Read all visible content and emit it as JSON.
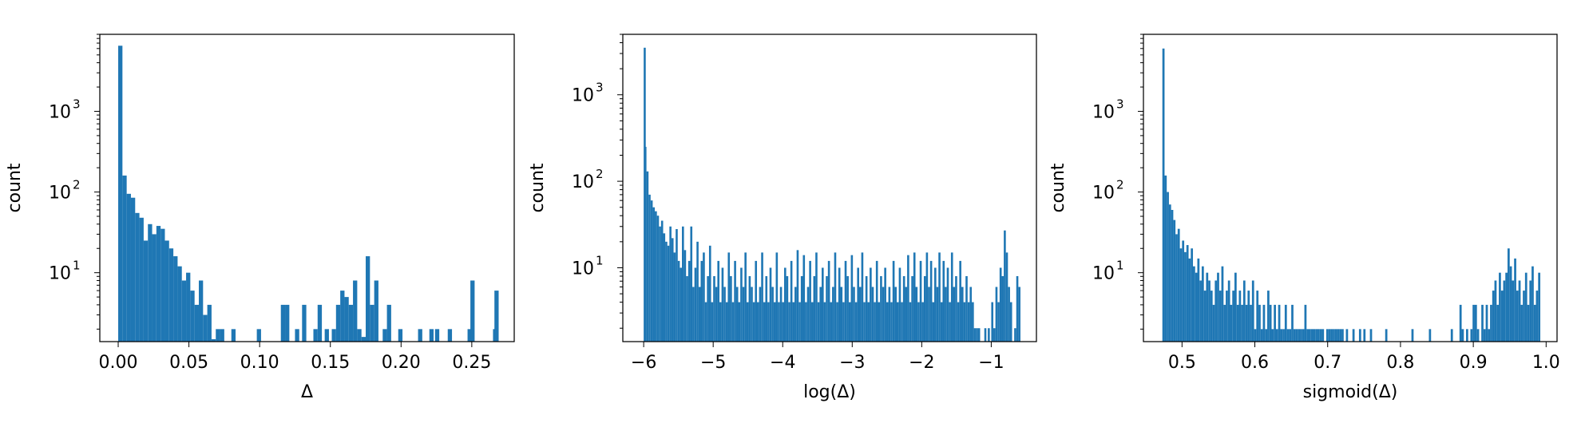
{
  "chart_data": [
    {
      "type": "bar",
      "xlabel": "Δ",
      "ylabel": "count",
      "yscale": "log",
      "xlim": [
        -0.013,
        0.28
      ],
      "ylim": [
        1.4,
        9000
      ],
      "xticks": [
        "0.00",
        "0.05",
        "0.10",
        "0.15",
        "0.20",
        "0.25"
      ],
      "yticks": [
        {
          "base": "10",
          "exp": "1"
        },
        {
          "base": "10",
          "exp": "2"
        },
        {
          "base": "10",
          "exp": "3"
        }
      ],
      "bar_color": "#1f77b4",
      "bins": [
        [
          0.0,
          6500
        ],
        [
          0.003,
          160
        ],
        [
          0.006,
          95
        ],
        [
          0.009,
          85
        ],
        [
          0.012,
          55
        ],
        [
          0.015,
          48
        ],
        [
          0.018,
          25
        ],
        [
          0.021,
          40
        ],
        [
          0.024,
          30
        ],
        [
          0.027,
          38
        ],
        [
          0.03,
          35
        ],
        [
          0.033,
          25
        ],
        [
          0.036,
          20
        ],
        [
          0.039,
          16
        ],
        [
          0.042,
          12
        ],
        [
          0.045,
          8
        ],
        [
          0.048,
          10
        ],
        [
          0.051,
          6
        ],
        [
          0.054,
          4
        ],
        [
          0.057,
          8
        ],
        [
          0.06,
          3
        ],
        [
          0.063,
          4
        ],
        [
          0.066,
          1.5
        ],
        [
          0.069,
          2
        ],
        [
          0.072,
          2
        ],
        [
          0.08,
          2
        ],
        [
          0.098,
          2
        ],
        [
          0.115,
          4
        ],
        [
          0.118,
          4
        ],
        [
          0.125,
          2
        ],
        [
          0.13,
          4
        ],
        [
          0.138,
          2
        ],
        [
          0.141,
          4
        ],
        [
          0.146,
          2
        ],
        [
          0.151,
          2
        ],
        [
          0.154,
          4
        ],
        [
          0.157,
          6
        ],
        [
          0.16,
          5
        ],
        [
          0.163,
          4
        ],
        [
          0.166,
          8
        ],
        [
          0.169,
          2
        ],
        [
          0.172,
          1.6
        ],
        [
          0.175,
          16
        ],
        [
          0.178,
          4
        ],
        [
          0.181,
          8
        ],
        [
          0.187,
          2
        ],
        [
          0.19,
          4
        ],
        [
          0.198,
          2
        ],
        [
          0.212,
          2
        ],
        [
          0.22,
          2
        ],
        [
          0.224,
          2
        ],
        [
          0.233,
          2
        ],
        [
          0.247,
          2
        ],
        [
          0.249,
          8
        ],
        [
          0.265,
          2
        ],
        [
          0.266,
          6
        ]
      ]
    },
    {
      "type": "bar",
      "xlabel": "log(Δ)",
      "ylabel": "count",
      "yscale": "log",
      "xlim": [
        -6.3,
        -0.35
      ],
      "ylim": [
        1.4,
        5000
      ],
      "xticks": [
        "−6",
        "−5",
        "−4",
        "−3",
        "−2",
        "−1"
      ],
      "yticks": [
        {
          "base": "10",
          "exp": "1"
        },
        {
          "base": "10",
          "exp": "2"
        },
        {
          "base": "10",
          "exp": "3"
        }
      ],
      "bar_color": "#1f77b4",
      "bins": [
        [
          -6.0,
          3500
        ],
        [
          -5.99,
          250
        ],
        [
          -5.96,
          130
        ],
        [
          -5.93,
          70
        ],
        [
          -5.9,
          60
        ],
        [
          -5.87,
          50
        ],
        [
          -5.84,
          45
        ],
        [
          -5.81,
          40
        ],
        [
          -5.78,
          30
        ],
        [
          -5.75,
          35
        ],
        [
          -5.72,
          25
        ],
        [
          -5.69,
          20
        ],
        [
          -5.66,
          18
        ],
        [
          -5.63,
          30
        ],
        [
          -5.6,
          22
        ],
        [
          -5.57,
          15
        ],
        [
          -5.54,
          28
        ],
        [
          -5.51,
          12
        ],
        [
          -5.48,
          10
        ],
        [
          -5.45,
          30
        ],
        [
          -5.42,
          16
        ],
        [
          -5.39,
          8
        ],
        [
          -5.36,
          12
        ],
        [
          -5.33,
          30
        ],
        [
          -5.3,
          6
        ],
        [
          -5.27,
          10
        ],
        [
          -5.24,
          20
        ],
        [
          -5.21,
          6
        ],
        [
          -5.18,
          12
        ],
        [
          -5.15,
          15
        ],
        [
          -5.12,
          4
        ],
        [
          -5.09,
          8
        ],
        [
          -5.06,
          18
        ],
        [
          -5.03,
          4
        ],
        [
          -5.0,
          8
        ],
        [
          -4.97,
          6
        ],
        [
          -4.94,
          12
        ],
        [
          -4.91,
          4
        ],
        [
          -4.88,
          10
        ],
        [
          -4.85,
          6
        ],
        [
          -4.82,
          4
        ],
        [
          -4.79,
          15
        ],
        [
          -4.76,
          8
        ],
        [
          -4.73,
          4
        ],
        [
          -4.7,
          12
        ],
        [
          -4.67,
          6
        ],
        [
          -4.64,
          4
        ],
        [
          -4.61,
          10
        ],
        [
          -4.58,
          6
        ],
        [
          -4.55,
          15
        ],
        [
          -4.52,
          4
        ],
        [
          -4.49,
          8
        ],
        [
          -4.46,
          6
        ],
        [
          -4.43,
          4
        ],
        [
          -4.4,
          12
        ],
        [
          -4.37,
          4
        ],
        [
          -4.34,
          6
        ],
        [
          -4.31,
          15
        ],
        [
          -4.28,
          4
        ],
        [
          -4.25,
          8
        ],
        [
          -4.22,
          4
        ],
        [
          -4.19,
          10
        ],
        [
          -4.16,
          6
        ],
        [
          -4.13,
          4
        ],
        [
          -4.1,
          15
        ],
        [
          -4.07,
          4
        ],
        [
          -4.04,
          6
        ],
        [
          -4.01,
          4
        ],
        [
          -3.98,
          10
        ],
        [
          -3.95,
          8
        ],
        [
          -3.92,
          4
        ],
        [
          -3.89,
          12
        ],
        [
          -3.86,
          4
        ],
        [
          -3.83,
          6
        ],
        [
          -3.8,
          16
        ],
        [
          -3.77,
          4
        ],
        [
          -3.74,
          8
        ],
        [
          -3.71,
          14
        ],
        [
          -3.68,
          4
        ],
        [
          -3.65,
          6
        ],
        [
          -3.62,
          12
        ],
        [
          -3.59,
          4
        ],
        [
          -3.56,
          8
        ],
        [
          -3.53,
          15
        ],
        [
          -3.5,
          4
        ],
        [
          -3.47,
          6
        ],
        [
          -3.44,
          10
        ],
        [
          -3.41,
          4
        ],
        [
          -3.38,
          8
        ],
        [
          -3.35,
          12
        ],
        [
          -3.32,
          4
        ],
        [
          -3.29,
          6
        ],
        [
          -3.26,
          15
        ],
        [
          -3.23,
          4
        ],
        [
          -3.2,
          10
        ],
        [
          -3.17,
          6
        ],
        [
          -3.14,
          4
        ],
        [
          -3.11,
          12
        ],
        [
          -3.08,
          8
        ],
        [
          -3.05,
          4
        ],
        [
          -3.02,
          14
        ],
        [
          -2.99,
          6
        ],
        [
          -2.96,
          4
        ],
        [
          -2.93,
          10
        ],
        [
          -2.9,
          6
        ],
        [
          -2.87,
          15
        ],
        [
          -2.84,
          4
        ],
        [
          -2.81,
          8
        ],
        [
          -2.78,
          4
        ],
        [
          -2.75,
          10
        ],
        [
          -2.72,
          6
        ],
        [
          -2.69,
          4
        ],
        [
          -2.66,
          12
        ],
        [
          -2.63,
          4
        ],
        [
          -2.6,
          8
        ],
        [
          -2.57,
          6
        ],
        [
          -2.54,
          10
        ],
        [
          -2.51,
          4
        ],
        [
          -2.48,
          6
        ],
        [
          -2.45,
          4
        ],
        [
          -2.42,
          12
        ],
        [
          -2.39,
          6
        ],
        [
          -2.36,
          4
        ],
        [
          -2.33,
          10
        ],
        [
          -2.3,
          4
        ],
        [
          -2.27,
          8
        ],
        [
          -2.24,
          6
        ],
        [
          -2.21,
          14
        ],
        [
          -2.18,
          4
        ],
        [
          -2.15,
          8
        ],
        [
          -2.12,
          15
        ],
        [
          -2.09,
          6
        ],
        [
          -2.06,
          4
        ],
        [
          -2.03,
          12
        ],
        [
          -2.0,
          4
        ],
        [
          -1.97,
          8
        ],
        [
          -1.94,
          15
        ],
        [
          -1.91,
          6
        ],
        [
          -1.88,
          12
        ],
        [
          -1.85,
          4
        ],
        [
          -1.82,
          10
        ],
        [
          -1.79,
          6
        ],
        [
          -1.76,
          15
        ],
        [
          -1.73,
          4
        ],
        [
          -1.7,
          12
        ],
        [
          -1.67,
          6
        ],
        [
          -1.64,
          10
        ],
        [
          -1.61,
          4
        ],
        [
          -1.58,
          15
        ],
        [
          -1.55,
          6
        ],
        [
          -1.52,
          8
        ],
        [
          -1.49,
          4
        ],
        [
          -1.46,
          12
        ],
        [
          -1.43,
          6
        ],
        [
          -1.4,
          4
        ],
        [
          -1.37,
          8
        ],
        [
          -1.34,
          4
        ],
        [
          -1.31,
          6
        ],
        [
          -1.28,
          4
        ],
        [
          -1.25,
          2
        ],
        [
          -1.22,
          2
        ],
        [
          -1.19,
          2
        ],
        [
          -1.1,
          2
        ],
        [
          -1.05,
          2
        ],
        [
          -1.0,
          4
        ],
        [
          -0.97,
          2
        ],
        [
          -0.94,
          6
        ],
        [
          -0.91,
          4
        ],
        [
          -0.88,
          10
        ],
        [
          -0.85,
          8
        ],
        [
          -0.82,
          27
        ],
        [
          -0.79,
          15
        ],
        [
          -0.76,
          6
        ],
        [
          -0.73,
          4
        ],
        [
          -0.67,
          2
        ],
        [
          -0.64,
          8
        ],
        [
          -0.61,
          6
        ]
      ]
    },
    {
      "type": "bar",
      "xlabel": "sigmoid(Δ)",
      "ylabel": "count",
      "yscale": "log",
      "xlim": [
        0.447,
        1.015
      ],
      "ylim": [
        1.4,
        9000
      ],
      "xticks": [
        "0.5",
        "0.6",
        "0.7",
        "0.8",
        "0.9",
        "1.0"
      ],
      "yticks": [
        {
          "base": "10",
          "exp": "1"
        },
        {
          "base": "10",
          "exp": "2"
        },
        {
          "base": "10",
          "exp": "3"
        }
      ],
      "bar_color": "#1f77b4",
      "bins": [
        [
          0.473,
          6000
        ],
        [
          0.476,
          160
        ],
        [
          0.479,
          100
        ],
        [
          0.482,
          70
        ],
        [
          0.485,
          60
        ],
        [
          0.488,
          45
        ],
        [
          0.491,
          30
        ],
        [
          0.494,
          35
        ],
        [
          0.497,
          20
        ],
        [
          0.5,
          25
        ],
        [
          0.503,
          18
        ],
        [
          0.506,
          22
        ],
        [
          0.509,
          15
        ],
        [
          0.512,
          20
        ],
        [
          0.515,
          12
        ],
        [
          0.518,
          10
        ],
        [
          0.521,
          15
        ],
        [
          0.524,
          8
        ],
        [
          0.527,
          12
        ],
        [
          0.53,
          6
        ],
        [
          0.533,
          10
        ],
        [
          0.536,
          8
        ],
        [
          0.539,
          6
        ],
        [
          0.542,
          4
        ],
        [
          0.545,
          8
        ],
        [
          0.548,
          10
        ],
        [
          0.551,
          6
        ],
        [
          0.554,
          12
        ],
        [
          0.557,
          4
        ],
        [
          0.56,
          6
        ],
        [
          0.563,
          8
        ],
        [
          0.566,
          4
        ],
        [
          0.569,
          6
        ],
        [
          0.572,
          10
        ],
        [
          0.575,
          4
        ],
        [
          0.578,
          6
        ],
        [
          0.581,
          4
        ],
        [
          0.584,
          8
        ],
        [
          0.587,
          4
        ],
        [
          0.59,
          6
        ],
        [
          0.593,
          4
        ],
        [
          0.596,
          8
        ],
        [
          0.599,
          2
        ],
        [
          0.602,
          6
        ],
        [
          0.605,
          4
        ],
        [
          0.608,
          2
        ],
        [
          0.611,
          4
        ],
        [
          0.614,
          2
        ],
        [
          0.617,
          6
        ],
        [
          0.62,
          4
        ],
        [
          0.623,
          2
        ],
        [
          0.626,
          4
        ],
        [
          0.629,
          2
        ],
        [
          0.632,
          4
        ],
        [
          0.635,
          2
        ],
        [
          0.638,
          2
        ],
        [
          0.641,
          4
        ],
        [
          0.644,
          2
        ],
        [
          0.647,
          2
        ],
        [
          0.65,
          4
        ],
        [
          0.653,
          2
        ],
        [
          0.656,
          2
        ],
        [
          0.659,
          2
        ],
        [
          0.662,
          2
        ],
        [
          0.665,
          2
        ],
        [
          0.668,
          4
        ],
        [
          0.671,
          2
        ],
        [
          0.674,
          2
        ],
        [
          0.677,
          2
        ],
        [
          0.68,
          2
        ],
        [
          0.683,
          2
        ],
        [
          0.686,
          2
        ],
        [
          0.689,
          2
        ],
        [
          0.692,
          2
        ],
        [
          0.698,
          2
        ],
        [
          0.701,
          2
        ],
        [
          0.704,
          2
        ],
        [
          0.707,
          2
        ],
        [
          0.71,
          2
        ],
        [
          0.713,
          2
        ],
        [
          0.716,
          2
        ],
        [
          0.719,
          2
        ],
        [
          0.725,
          2
        ],
        [
          0.734,
          2
        ],
        [
          0.743,
          2
        ],
        [
          0.749,
          2
        ],
        [
          0.758,
          2
        ],
        [
          0.779,
          2
        ],
        [
          0.815,
          2
        ],
        [
          0.839,
          2
        ],
        [
          0.869,
          2
        ],
        [
          0.881,
          4
        ],
        [
          0.884,
          2
        ],
        [
          0.89,
          2
        ],
        [
          0.896,
          2
        ],
        [
          0.899,
          4
        ],
        [
          0.902,
          4
        ],
        [
          0.905,
          2
        ],
        [
          0.911,
          4
        ],
        [
          0.914,
          2
        ],
        [
          0.917,
          4
        ],
        [
          0.92,
          2
        ],
        [
          0.923,
          4
        ],
        [
          0.926,
          6
        ],
        [
          0.929,
          8
        ],
        [
          0.932,
          4
        ],
        [
          0.935,
          10
        ],
        [
          0.938,
          6
        ],
        [
          0.941,
          8
        ],
        [
          0.944,
          10
        ],
        [
          0.947,
          20
        ],
        [
          0.95,
          12
        ],
        [
          0.953,
          8
        ],
        [
          0.956,
          15
        ],
        [
          0.959,
          6
        ],
        [
          0.962,
          8
        ],
        [
          0.965,
          4
        ],
        [
          0.968,
          6
        ],
        [
          0.971,
          10
        ],
        [
          0.974,
          4
        ],
        [
          0.977,
          8
        ],
        [
          0.98,
          12
        ],
        [
          0.983,
          4
        ],
        [
          0.986,
          6
        ],
        [
          0.989,
          10
        ]
      ]
    }
  ]
}
